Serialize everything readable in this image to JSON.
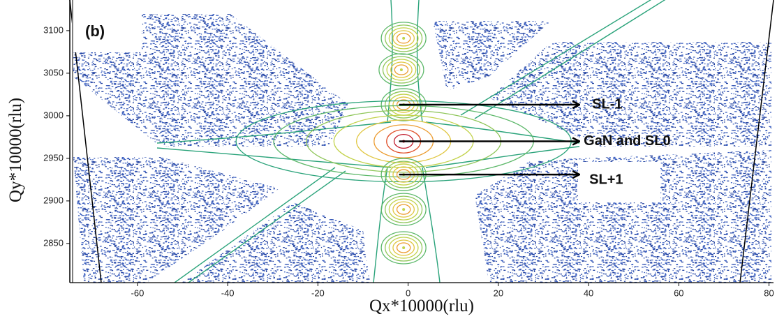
{
  "chart_data": {
    "type": "contour",
    "panel_label": "(b)",
    "xlabel": "Qx*10000(rlu)",
    "ylabel": "Qy*10000(rlu)",
    "xlim": [
      -75,
      81
    ],
    "ylim": [
      2804,
      3136
    ],
    "xticks": [
      -60,
      -40,
      -20,
      0,
      20,
      40,
      60,
      80
    ],
    "yticks": [
      2850,
      2900,
      2950,
      3000,
      3050,
      3100
    ],
    "peaks": {
      "x": [
        -1,
        -1.5,
        -1,
        -1,
        -1,
        -1,
        -1
      ],
      "y": [
        3091,
        3054,
        3013,
        2970,
        2931,
        2890,
        2845
      ]
    },
    "annotations": [
      {
        "text": "SL-1",
        "xy": [
          -2,
          3013
        ],
        "xytext": [
          38,
          3013
        ]
      },
      {
        "text": "GaN and SL0",
        "xy": [
          -2,
          2970
        ],
        "xytext": [
          38,
          2970
        ]
      },
      {
        "text": "SL+1",
        "xy": [
          -2,
          2931
        ],
        "xytext": [
          38,
          2931
        ]
      }
    ]
  }
}
